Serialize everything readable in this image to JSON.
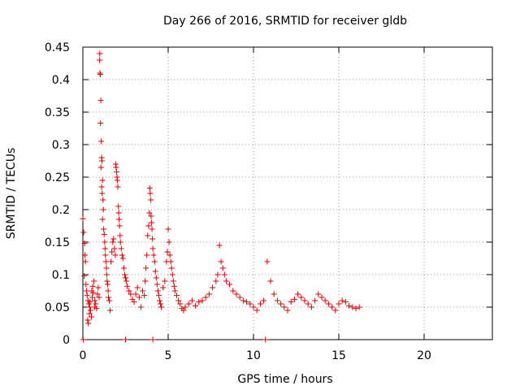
{
  "chart_data": {
    "type": "scatter",
    "title": "Day 266 of 2016, SRMTID for receiver gldb",
    "xlabel": "GPS time / hours",
    "ylabel": "SRMTID / TECUs",
    "xlim": [
      0,
      24
    ],
    "ylim": [
      0,
      0.45
    ],
    "xticks": [
      0,
      5,
      10,
      15,
      20
    ],
    "xtick_labels": [
      "0",
      "5",
      "10",
      "15",
      "20"
    ],
    "yticks": [
      0,
      0.05,
      0.1,
      0.15,
      0.2,
      0.25,
      0.3,
      0.35,
      0.4,
      0.45
    ],
    "ytick_labels": [
      "0",
      "0.05",
      "0.1",
      "0.15",
      "0.2",
      "0.25",
      "0.3",
      "0.35",
      "0.4",
      "0.45"
    ],
    "grid": true,
    "marker": "+",
    "color": "#e00000",
    "series": [
      {
        "name": "SRMTID",
        "points": [
          [
            0.0,
            0.186
          ],
          [
            0.05,
            0.165
          ],
          [
            0.1,
            0.148
          ],
          [
            0.12,
            0.13
          ],
          [
            0.15,
            0.12
          ],
          [
            0.08,
            0.098
          ],
          [
            0.18,
            0.085
          ],
          [
            0.22,
            0.075
          ],
          [
            0.25,
            0.068
          ],
          [
            0.3,
            0.06
          ],
          [
            0.35,
            0.055
          ],
          [
            0.4,
            0.05
          ],
          [
            0.45,
            0.045
          ],
          [
            0.5,
            0.035
          ],
          [
            0.55,
            0.065
          ],
          [
            0.6,
            0.072
          ],
          [
            0.65,
            0.09
          ],
          [
            0.7,
            0.06
          ],
          [
            0.75,
            0.055
          ],
          [
            0.8,
            0.048
          ],
          [
            0.85,
            0.07
          ],
          [
            0.9,
            0.08
          ],
          [
            0.95,
            0.065
          ],
          [
            0.28,
            0.03
          ],
          [
            0.32,
            0.025
          ],
          [
            0.38,
            0.04
          ],
          [
            0.42,
            0.058
          ],
          [
            0.52,
            0.075
          ],
          [
            0.58,
            0.082
          ],
          [
            0.68,
            0.05
          ],
          [
            0.98,
            0.43
          ],
          [
            0.99,
            0.44
          ],
          [
            1.0,
            0.41
          ],
          [
            1.02,
            0.408
          ],
          [
            1.05,
            0.368
          ],
          [
            1.03,
            0.333
          ],
          [
            1.08,
            0.305
          ],
          [
            1.1,
            0.28
          ],
          [
            1.12,
            0.275
          ],
          [
            1.06,
            0.265
          ],
          [
            1.15,
            0.245
          ],
          [
            1.1,
            0.235
          ],
          [
            1.13,
            0.225
          ],
          [
            1.18,
            0.215
          ],
          [
            1.2,
            0.2
          ],
          [
            1.15,
            0.185
          ],
          [
            1.22,
            0.17
          ],
          [
            1.25,
            0.162
          ],
          [
            1.28,
            0.15
          ],
          [
            1.3,
            0.14
          ],
          [
            1.32,
            0.13
          ],
          [
            1.35,
            0.12
          ],
          [
            1.38,
            0.11
          ],
          [
            1.4,
            0.1
          ],
          [
            1.42,
            0.09
          ],
          [
            1.45,
            0.085
          ],
          [
            1.48,
            0.075
          ],
          [
            1.5,
            0.065
          ],
          [
            1.55,
            0.06
          ],
          [
            1.6,
            0.045
          ],
          [
            1.65,
            0.12
          ],
          [
            1.7,
            0.135
          ],
          [
            1.75,
            0.15
          ],
          [
            1.8,
            0.155
          ],
          [
            1.85,
            0.14
          ],
          [
            1.9,
            0.13
          ],
          [
            1.92,
            0.27
          ],
          [
            1.95,
            0.265
          ],
          [
            1.98,
            0.258
          ],
          [
            2.0,
            0.25
          ],
          [
            2.02,
            0.245
          ],
          [
            2.05,
            0.235
          ],
          [
            2.08,
            0.205
          ],
          [
            2.1,
            0.195
          ],
          [
            2.12,
            0.185
          ],
          [
            2.15,
            0.175
          ],
          [
            2.18,
            0.16
          ],
          [
            2.2,
            0.15
          ],
          [
            2.25,
            0.14
          ],
          [
            2.3,
            0.13
          ],
          [
            2.35,
            0.125
          ],
          [
            2.4,
            0.11
          ],
          [
            2.45,
            0.1
          ],
          [
            2.5,
            0.095
          ],
          [
            2.55,
            0.09
          ],
          [
            2.6,
            0.082
          ],
          [
            2.7,
            0.075
          ],
          [
            2.8,
            0.07
          ],
          [
            2.9,
            0.062
          ],
          [
            3.0,
            0.058
          ],
          [
            3.1,
            0.07
          ],
          [
            3.2,
            0.08
          ],
          [
            3.3,
            0.065
          ],
          [
            3.4,
            0.05
          ],
          [
            3.5,
            0.075
          ],
          [
            3.6,
            0.068
          ],
          [
            3.65,
            0.09
          ],
          [
            3.7,
            0.11
          ],
          [
            3.75,
            0.13
          ],
          [
            3.8,
            0.16
          ],
          [
            3.85,
            0.175
          ],
          [
            3.9,
            0.195
          ],
          [
            3.92,
            0.233
          ],
          [
            3.95,
            0.225
          ],
          [
            3.98,
            0.215
          ],
          [
            4.0,
            0.19
          ],
          [
            4.02,
            0.18
          ],
          [
            4.05,
            0.17
          ],
          [
            4.08,
            0.155
          ],
          [
            4.1,
            0.14
          ],
          [
            4.15,
            0.13
          ],
          [
            4.2,
            0.12
          ],
          [
            4.25,
            0.105
          ],
          [
            4.3,
            0.095
          ],
          [
            4.35,
            0.085
          ],
          [
            4.4,
            0.075
          ],
          [
            4.45,
            0.068
          ],
          [
            4.5,
            0.06
          ],
          [
            4.55,
            0.055
          ],
          [
            4.6,
            0.05
          ],
          [
            4.7,
            0.08
          ],
          [
            4.8,
            0.09
          ],
          [
            4.9,
            0.12
          ],
          [
            4.95,
            0.135
          ],
          [
            5.0,
            0.17
          ],
          [
            5.05,
            0.15
          ],
          [
            5.1,
            0.13
          ],
          [
            5.15,
            0.12
          ],
          [
            5.2,
            0.11
          ],
          [
            5.25,
            0.1
          ],
          [
            5.3,
            0.09
          ],
          [
            5.35,
            0.082
          ],
          [
            5.4,
            0.075
          ],
          [
            5.5,
            0.068
          ],
          [
            5.6,
            0.06
          ],
          [
            5.7,
            0.055
          ],
          [
            5.8,
            0.048
          ],
          [
            5.9,
            0.045
          ],
          [
            6.0,
            0.05
          ],
          [
            6.2,
            0.055
          ],
          [
            6.4,
            0.06
          ],
          [
            6.6,
            0.052
          ],
          [
            6.8,
            0.058
          ],
          [
            7.0,
            0.06
          ],
          [
            7.2,
            0.065
          ],
          [
            7.4,
            0.07
          ],
          [
            7.6,
            0.08
          ],
          [
            7.8,
            0.09
          ],
          [
            7.9,
            0.1
          ],
          [
            8.0,
            0.145
          ],
          [
            8.1,
            0.12
          ],
          [
            8.2,
            0.11
          ],
          [
            8.3,
            0.1
          ],
          [
            8.4,
            0.09
          ],
          [
            8.6,
            0.085
          ],
          [
            8.8,
            0.075
          ],
          [
            9.0,
            0.07
          ],
          [
            9.2,
            0.065
          ],
          [
            9.4,
            0.06
          ],
          [
            9.6,
            0.058
          ],
          [
            9.8,
            0.055
          ],
          [
            10.0,
            0.05
          ],
          [
            10.2,
            0.045
          ],
          [
            10.4,
            0.055
          ],
          [
            10.6,
            0.06
          ],
          [
            10.8,
            0.12
          ],
          [
            11.0,
            0.09
          ],
          [
            11.2,
            0.07
          ],
          [
            11.4,
            0.06
          ],
          [
            11.6,
            0.055
          ],
          [
            11.8,
            0.05
          ],
          [
            12.0,
            0.045
          ],
          [
            12.2,
            0.058
          ],
          [
            12.4,
            0.062
          ],
          [
            12.6,
            0.07
          ],
          [
            12.8,
            0.065
          ],
          [
            13.0,
            0.06
          ],
          [
            13.2,
            0.055
          ],
          [
            13.4,
            0.05
          ],
          [
            13.6,
            0.06
          ],
          [
            13.8,
            0.07
          ],
          [
            14.0,
            0.065
          ],
          [
            14.2,
            0.06
          ],
          [
            14.4,
            0.055
          ],
          [
            14.6,
            0.05
          ],
          [
            14.8,
            0.045
          ],
          [
            15.0,
            0.055
          ],
          [
            15.2,
            0.06
          ],
          [
            15.4,
            0.058
          ],
          [
            15.6,
            0.052
          ],
          [
            15.8,
            0.05
          ],
          [
            16.0,
            0.048
          ],
          [
            16.2,
            0.05
          ],
          [
            0.02,
            0.0
          ],
          [
            10.7,
            0.0
          ],
          [
            4.1,
            0.0
          ],
          [
            2.5,
            0.0
          ]
        ]
      }
    ]
  }
}
